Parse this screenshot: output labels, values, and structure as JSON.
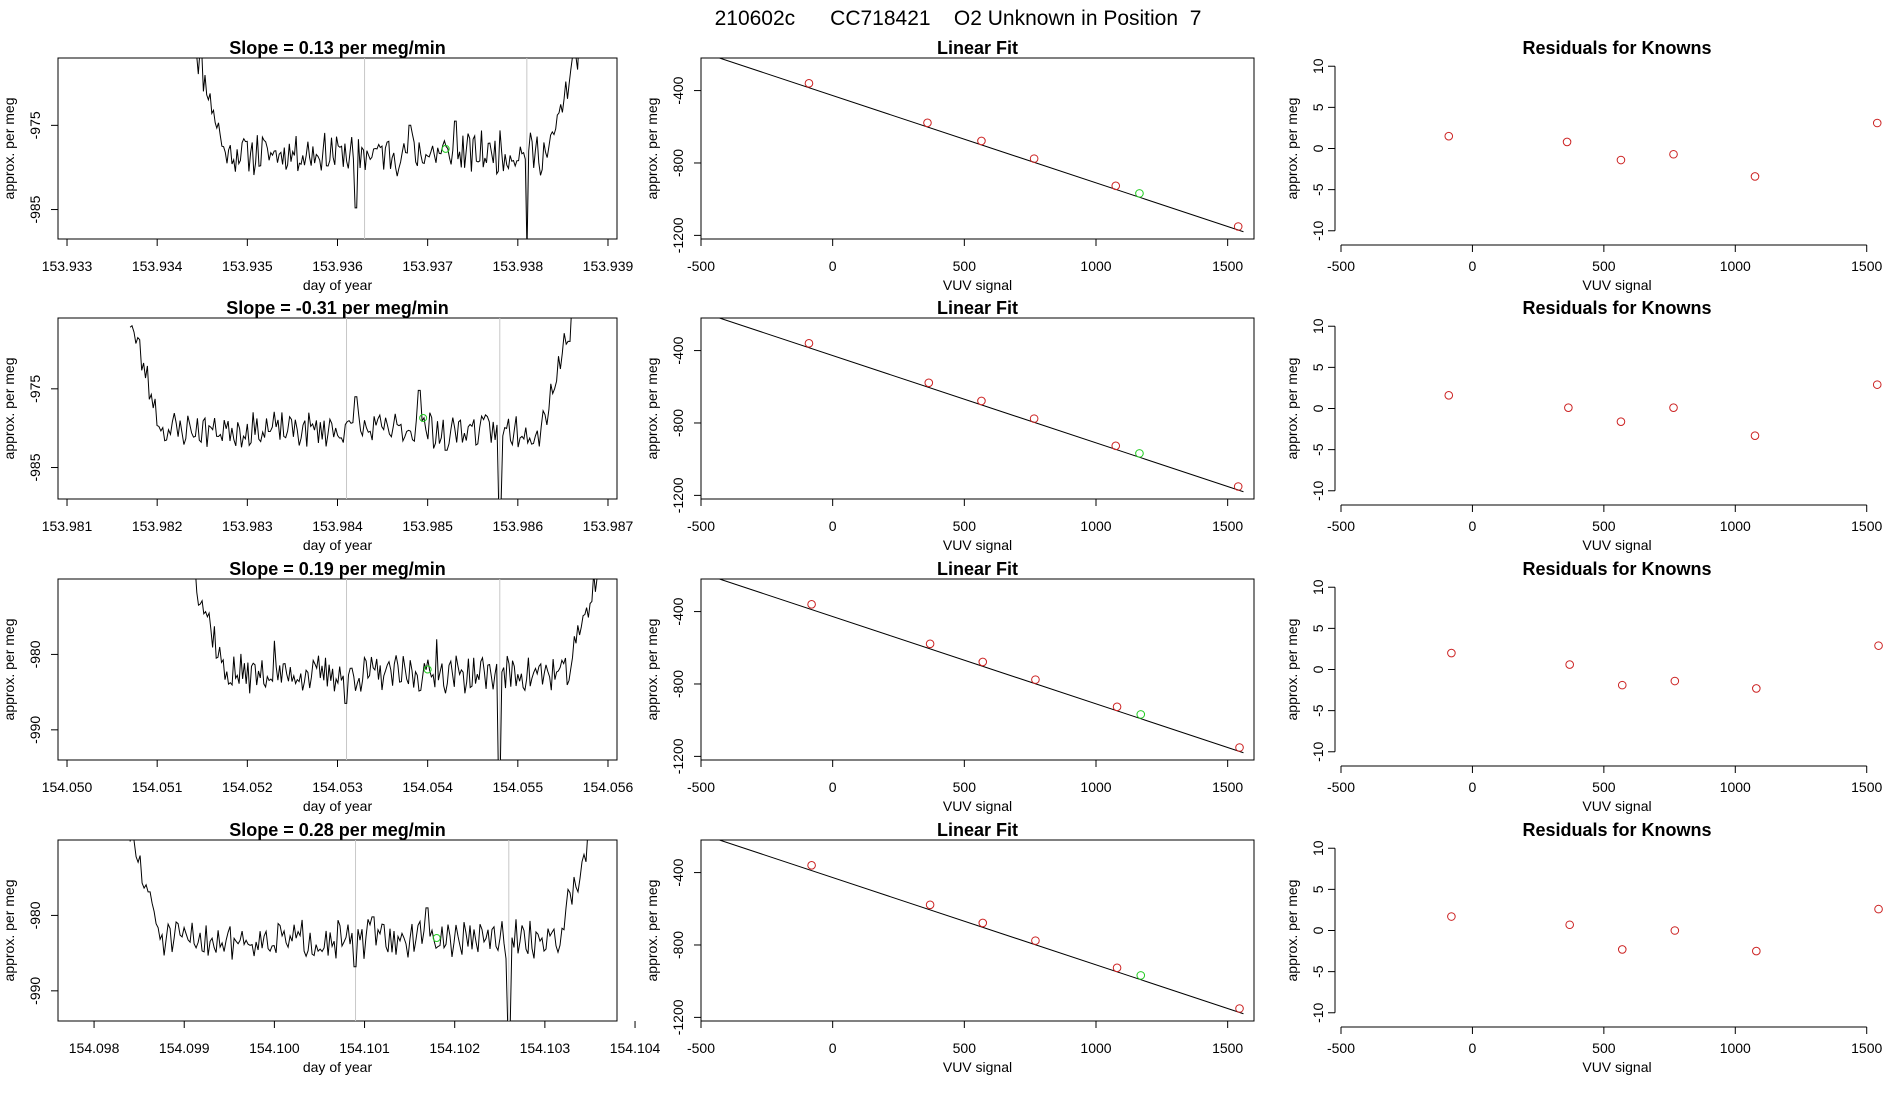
{
  "header": {
    "title": "210602c      CC718421    O2 Unknown in Position  7"
  },
  "colors": {
    "known": "#cc2222",
    "unknown": "#22cc22",
    "line": "#000000",
    "marker_line": "#c8c8c8"
  },
  "chart_data": [
    {
      "type": "line",
      "row": 0,
      "panel": "time-series",
      "title": "Slope =  0.13  per meg/min",
      "xlabel": "day of year",
      "ylabel": "approx. per meg",
      "xlim": [
        153.9329,
        153.9391
      ],
      "ylim": [
        -988.5,
        -967
      ],
      "xticks": [
        "153.933",
        "153.934",
        "153.935",
        "153.936",
        "153.937",
        "153.938",
        "153.939"
      ],
      "xtick_values": [
        153.933,
        153.934,
        153.935,
        153.936,
        153.937,
        153.938,
        153.939
      ],
      "yticks": [
        "-975",
        "-985"
      ],
      "ytick_values": [
        -975,
        -985
      ],
      "vlines": [
        153.9363,
        153.9381
      ],
      "data_start": 153.9344,
      "data_end": 153.9387,
      "baseline": -978.3,
      "noise": 1.3,
      "seed": 11,
      "spikes": [
        [
          153.9362,
          -984.8
        ],
        [
          153.9368,
          -975.0
        ],
        [
          153.9381,
          -990
        ],
        [
          153.9373,
          -974.5
        ]
      ],
      "unknown_point": {
        "x": 153.9372,
        "y": -977.8
      }
    },
    {
      "type": "scatter",
      "row": 0,
      "panel": "linear-fit",
      "title": "Linear Fit",
      "xlabel": "VUV signal",
      "ylabel": "approx. per meg",
      "xlim": [
        -500,
        1600
      ],
      "ylim": [
        -1220,
        -220
      ],
      "xticks": [
        "-500",
        "0",
        "500",
        "1000",
        "1500"
      ],
      "xtick_values": [
        -500,
        0,
        500,
        1000,
        1500
      ],
      "yticks": [
        "-400",
        "-800",
        "-1200"
      ],
      "ytick_values": [
        -400,
        -800,
        -1200
      ],
      "fit_line": {
        "x": [
          -430,
          1560
        ],
        "y": [
          -220,
          -1180
        ]
      },
      "known_points": {
        "x": [
          -90,
          360,
          565,
          765,
          1075,
          1540
        ],
        "y": [
          -360,
          -578,
          -678,
          -776,
          -926,
          -1151
        ]
      },
      "unknown_point": {
        "x": 1165,
        "y": -968
      }
    },
    {
      "type": "scatter",
      "row": 0,
      "panel": "residuals",
      "title": "Residuals for Knowns",
      "xlabel": "VUV signal",
      "ylabel": "approx. per meg",
      "xlim": [
        -500,
        1600
      ],
      "ylim": [
        -11,
        11
      ],
      "xticks": [
        "-500",
        "0",
        "500",
        "1000",
        "1500"
      ],
      "xtick_values": [
        -500,
        0,
        500,
        1000,
        1500
      ],
      "yticks": [
        "-10",
        "-5",
        "0",
        "5",
        "10"
      ],
      "ytick_values": [
        -10,
        -5,
        0,
        5,
        10
      ],
      "points": {
        "x": [
          -90,
          360,
          565,
          765,
          1075,
          1540
        ],
        "y": [
          1.5,
          0.8,
          -1.4,
          -0.7,
          -3.4,
          3.1
        ]
      }
    },
    {
      "type": "line",
      "row": 1,
      "panel": "time-series",
      "title": "Slope =  -0.31  per meg/min",
      "xlabel": "day of year",
      "ylabel": "approx. per meg",
      "xlim": [
        153.9809,
        153.9871
      ],
      "ylim": [
        -989,
        -966
      ],
      "xticks": [
        "153.981",
        "153.982",
        "153.983",
        "153.984",
        "153.985",
        "153.986",
        "153.987"
      ],
      "xtick_values": [
        153.981,
        153.982,
        153.983,
        153.984,
        153.985,
        153.986,
        153.987
      ],
      "yticks": [
        "-975",
        "-985"
      ],
      "ytick_values": [
        -975,
        -985
      ],
      "vlines": [
        153.9841,
        153.9858
      ],
      "data_start": 153.9817,
      "data_end": 153.9866,
      "baseline": -980.2,
      "noise": 1.2,
      "seed": 23,
      "spikes": [
        [
          153.9849,
          -975.2
        ],
        [
          153.9858,
          -991
        ],
        [
          153.9842,
          -976.0
        ],
        [
          153.9852,
          -982.8
        ]
      ],
      "unknown_point": {
        "x": 153.98495,
        "y": -978.7
      }
    },
    {
      "type": "scatter",
      "row": 1,
      "panel": "linear-fit",
      "title": "Linear Fit",
      "xlabel": "VUV signal",
      "ylabel": "approx. per meg",
      "xlim": [
        -500,
        1600
      ],
      "ylim": [
        -1220,
        -220
      ],
      "xticks": [
        "-500",
        "0",
        "500",
        "1000",
        "1500"
      ],
      "xtick_values": [
        -500,
        0,
        500,
        1000,
        1500
      ],
      "yticks": [
        "-400",
        "-800",
        "-1200"
      ],
      "ytick_values": [
        -400,
        -800,
        -1200
      ],
      "fit_line": {
        "x": [
          -430,
          1560
        ],
        "y": [
          -220,
          -1180
        ]
      },
      "known_points": {
        "x": [
          -90,
          365,
          565,
          765,
          1075,
          1540
        ],
        "y": [
          -360,
          -578,
          -678,
          -776,
          -926,
          -1151
        ]
      },
      "unknown_point": {
        "x": 1165,
        "y": -968
      }
    },
    {
      "type": "scatter",
      "row": 1,
      "panel": "residuals",
      "title": "Residuals for Knowns",
      "xlabel": "VUV signal",
      "ylabel": "approx. per meg",
      "xlim": [
        -500,
        1600
      ],
      "ylim": [
        -11,
        11
      ],
      "xticks": [
        "-500",
        "0",
        "500",
        "1000",
        "1500"
      ],
      "xtick_values": [
        -500,
        0,
        500,
        1000,
        1500
      ],
      "yticks": [
        "-10",
        "-5",
        "0",
        "5",
        "10"
      ],
      "ytick_values": [
        -10,
        -5,
        0,
        5,
        10
      ],
      "points": {
        "x": [
          -90,
          365,
          565,
          765,
          1075,
          1540
        ],
        "y": [
          1.6,
          0.1,
          -1.6,
          0.1,
          -3.3,
          2.9
        ]
      }
    },
    {
      "type": "line",
      "row": 2,
      "panel": "time-series",
      "title": "Slope =  0.19  per meg/min",
      "xlabel": "day of year",
      "ylabel": "approx. per meg",
      "xlim": [
        154.0499,
        154.0561
      ],
      "ylim": [
        -994,
        -970
      ],
      "xticks": [
        "154.050",
        "154.051",
        "154.052",
        "154.053",
        "154.054",
        "154.055",
        "154.056"
      ],
      "xtick_values": [
        154.05,
        154.051,
        154.052,
        154.053,
        154.054,
        154.055,
        154.056
      ],
      "yticks": [
        "-980",
        "-990"
      ],
      "ytick_values": [
        -980,
        -990
      ],
      "vlines": [
        154.0531,
        154.0548
      ],
      "data_start": 154.0514,
      "data_end": 154.0559,
      "baseline": -982.6,
      "noise": 1.3,
      "seed": 37,
      "spikes": [
        [
          154.0531,
          -986.5
        ],
        [
          154.0548,
          -996
        ],
        [
          154.0541,
          -978.0
        ],
        [
          154.0523,
          -978.2
        ]
      ],
      "unknown_point": {
        "x": 154.054,
        "y": -982.0
      }
    },
    {
      "type": "scatter",
      "row": 2,
      "panel": "linear-fit",
      "title": "Linear Fit",
      "xlabel": "VUV signal",
      "ylabel": "approx. per meg",
      "xlim": [
        -500,
        1600
      ],
      "ylim": [
        -1220,
        -220
      ],
      "xticks": [
        "-500",
        "0",
        "500",
        "1000",
        "1500"
      ],
      "xtick_values": [
        -500,
        0,
        500,
        1000,
        1500
      ],
      "yticks": [
        "-400",
        "-800",
        "-1200"
      ],
      "ytick_values": [
        -400,
        -800,
        -1200
      ],
      "fit_line": {
        "x": [
          -430,
          1560
        ],
        "y": [
          -220,
          -1180
        ]
      },
      "known_points": {
        "x": [
          -80,
          370,
          570,
          770,
          1080,
          1545
        ],
        "y": [
          -360,
          -578,
          -678,
          -776,
          -926,
          -1151
        ]
      },
      "unknown_point": {
        "x": 1170,
        "y": -968
      }
    },
    {
      "type": "scatter",
      "row": 2,
      "panel": "residuals",
      "title": "Residuals for Knowns",
      "xlabel": "VUV signal",
      "ylabel": "approx. per meg",
      "xlim": [
        -500,
        1600
      ],
      "ylim": [
        -11,
        11
      ],
      "xticks": [
        "-500",
        "0",
        "500",
        "1000",
        "1500"
      ],
      "xtick_values": [
        -500,
        0,
        500,
        1000,
        1500
      ],
      "points": {
        "x": [
          -80,
          370,
          570,
          770,
          1080,
          1545
        ],
        "y": [
          2.0,
          0.6,
          -1.9,
          -1.4,
          -2.3,
          2.9
        ]
      },
      "yticks": [
        "-10",
        "-5",
        "0",
        "5",
        "10"
      ],
      "ytick_values": [
        -10,
        -5,
        0,
        5,
        10
      ]
    },
    {
      "type": "line",
      "row": 3,
      "panel": "time-series",
      "title": "Slope =  0.28  per meg/min",
      "xlabel": "day of year",
      "ylabel": "approx. per meg",
      "xlim": [
        154.0976,
        154.1038
      ],
      "ylim": [
        -994,
        -970
      ],
      "xticks": [
        "154.098",
        "154.099",
        "154.100",
        "154.101",
        "154.102",
        "154.103",
        "154.104"
      ],
      "xtick_values": [
        154.098,
        154.099,
        154.1,
        154.101,
        154.102,
        154.103,
        154.104
      ],
      "yticks": [
        "-980",
        "-990"
      ],
      "ytick_values": [
        -980,
        -990
      ],
      "vlines": [
        154.1009,
        154.1026
      ],
      "data_start": 154.0984,
      "data_end": 154.1035,
      "baseline": -983.2,
      "noise": 1.3,
      "seed": 51,
      "spikes": [
        [
          154.1009,
          -986.8
        ],
        [
          154.1026,
          -996
        ],
        [
          154.1017,
          -979.0
        ],
        [
          154.1011,
          -980.2
        ]
      ],
      "unknown_point": {
        "x": 154.1018,
        "y": -983.0
      }
    },
    {
      "type": "scatter",
      "row": 3,
      "panel": "linear-fit",
      "title": "Linear Fit",
      "xlabel": "VUV signal",
      "ylabel": "approx. per meg",
      "xlim": [
        -500,
        1600
      ],
      "ylim": [
        -1220,
        -220
      ],
      "xticks": [
        "-500",
        "0",
        "500",
        "1000",
        "1500"
      ],
      "xtick_values": [
        -500,
        0,
        500,
        1000,
        1500
      ],
      "yticks": [
        "-400",
        "-800",
        "-1200"
      ],
      "ytick_values": [
        -400,
        -800,
        -1200
      ],
      "fit_line": {
        "x": [
          -430,
          1560
        ],
        "y": [
          -220,
          -1180
        ]
      },
      "known_points": {
        "x": [
          -80,
          370,
          570,
          770,
          1080,
          1545
        ],
        "y": [
          -360,
          -578,
          -678,
          -776,
          -926,
          -1151
        ]
      },
      "unknown_point": {
        "x": 1170,
        "y": -968
      }
    },
    {
      "type": "scatter",
      "row": 3,
      "panel": "residuals",
      "title": "Residuals for Knowns",
      "xlabel": "VUV signal",
      "ylabel": "approx. per meg",
      "xlim": [
        -500,
        1600
      ],
      "ylim": [
        -11,
        11
      ],
      "xticks": [
        "-500",
        "0",
        "500",
        "1000",
        "1500"
      ],
      "xtick_values": [
        -500,
        0,
        500,
        1000,
        1500
      ],
      "yticks": [
        "-10",
        "-5",
        "0",
        "5",
        "10"
      ],
      "ytick_values": [
        -10,
        -5,
        0,
        5,
        10
      ],
      "points": {
        "x": [
          -80,
          370,
          570,
          770,
          1080,
          1545
        ],
        "y": [
          1.7,
          0.7,
          -2.3,
          0.0,
          -2.5,
          2.6
        ]
      }
    }
  ]
}
